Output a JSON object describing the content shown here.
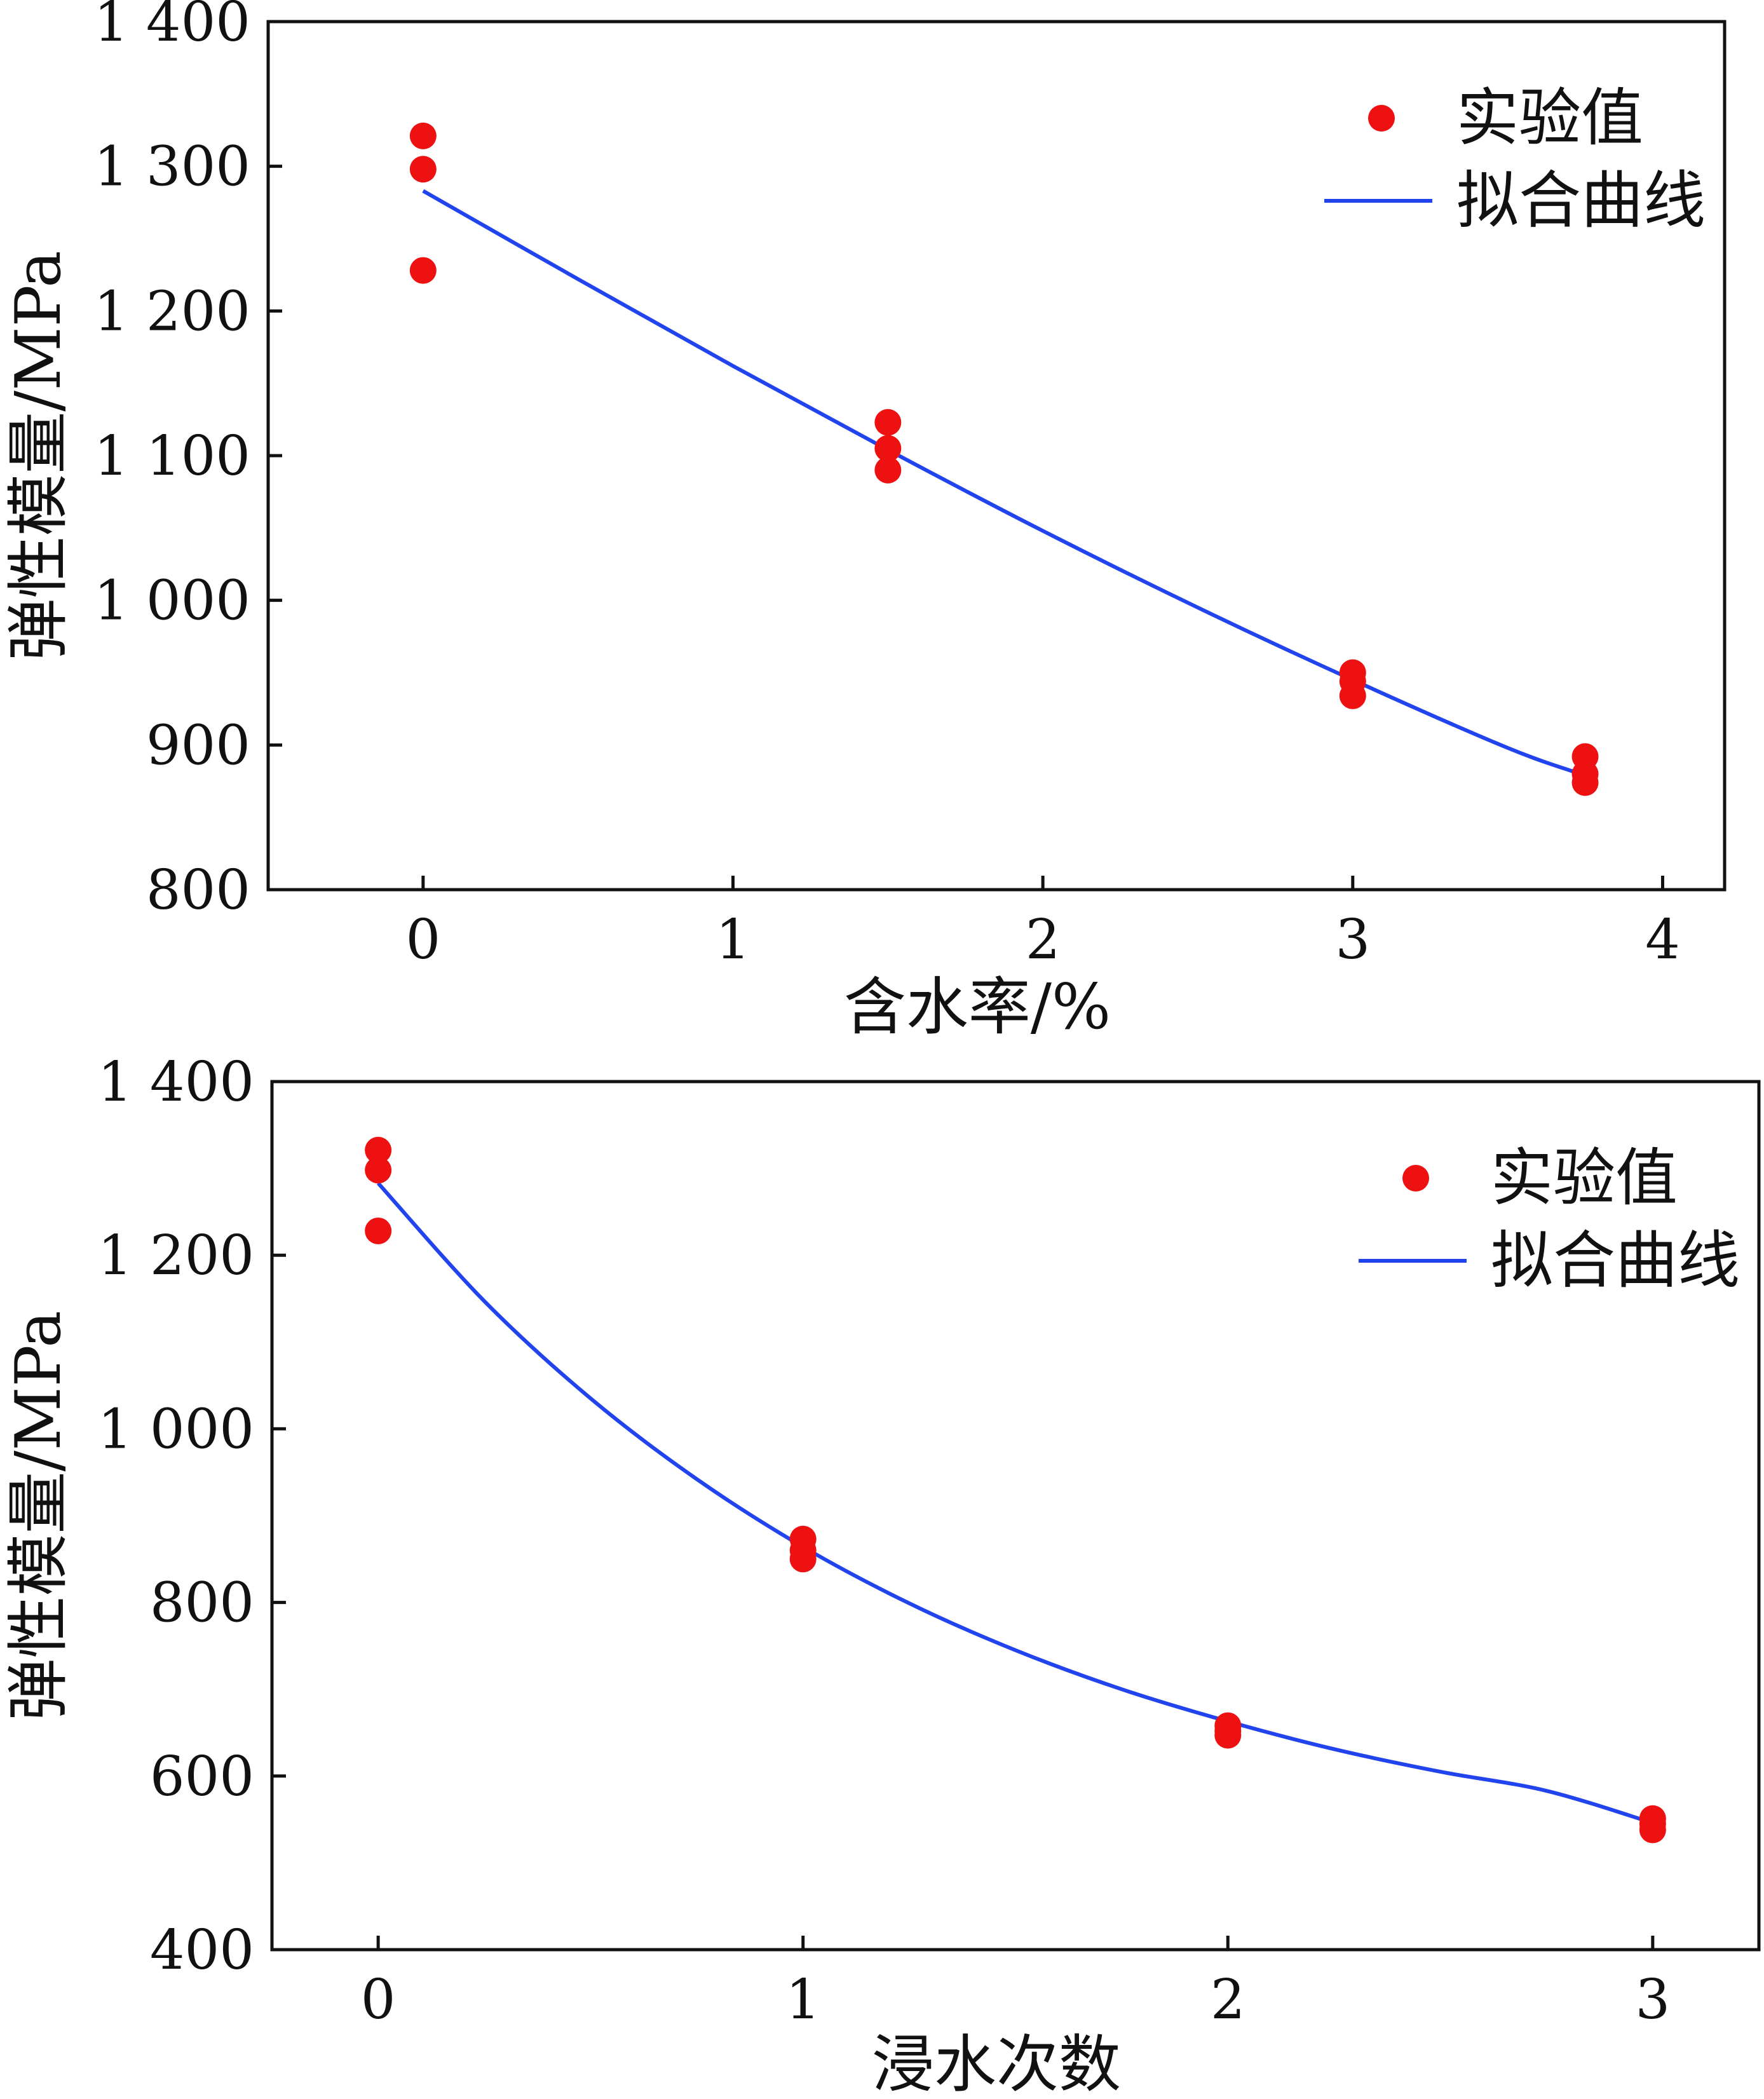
{
  "chart_data": [
    {
      "type": "scatter",
      "xlabel": "含水率/%",
      "ylabel": "弹性模量/MPa",
      "xlim": [
        -0.5,
        4.2
      ],
      "ylim": [
        800,
        1400
      ],
      "xticks": [
        0,
        1,
        2,
        3,
        4
      ],
      "xtick_labels": [
        "0",
        "1",
        "2",
        "3",
        "4"
      ],
      "yticks": [
        800,
        900,
        1000,
        1100,
        1200,
        1300,
        1400
      ],
      "ytick_labels": [
        "800",
        "900",
        "1 000",
        "1 100",
        "1 200",
        "1 300",
        "1 400"
      ],
      "grid": false,
      "legend": {
        "placement": "top-right",
        "points_label": "实验值",
        "line_label": "拟合曲线"
      },
      "points": {
        "color": "#ee1111",
        "x": [
          0,
          0,
          0,
          1.5,
          1.5,
          1.5,
          3,
          3,
          3,
          3.75,
          3.75,
          3.75
        ],
        "y": [
          1321,
          1298,
          1228,
          1123,
          1105,
          1090,
          950,
          944,
          934,
          892,
          880,
          874
        ]
      },
      "fit": {
        "color": "#2244ee",
        "x": [
          0,
          0.5,
          1,
          1.5,
          2,
          2.5,
          3,
          3.5,
          3.75
        ],
        "y": [
          1283,
          1222,
          1162,
          1104,
          1048,
          995,
          945,
          898,
          879
        ]
      }
    },
    {
      "type": "scatter",
      "xlabel": "浸水次数",
      "ylabel": "弹性模量/MPa",
      "xlim": [
        -0.25,
        3.25
      ],
      "ylim": [
        400,
        1400
      ],
      "xticks": [
        0,
        1,
        2,
        3
      ],
      "xtick_labels": [
        "0",
        "1",
        "2",
        "3"
      ],
      "yticks": [
        400,
        600,
        800,
        1000,
        1200,
        1400
      ],
      "ytick_labels": [
        "400",
        "600",
        "800",
        "1 000",
        "1 200",
        "1 400"
      ],
      "grid": false,
      "legend": {
        "placement": "top-right",
        "points_label": "实验值",
        "line_label": "拟合曲线"
      },
      "points": {
        "color": "#ee1111",
        "x": [
          0,
          0,
          0,
          1,
          1,
          1,
          2,
          2,
          2,
          3,
          3,
          3
        ],
        "y": [
          1321,
          1298,
          1228,
          873,
          860,
          850,
          658,
          652,
          647,
          551,
          545,
          538
        ]
      },
      "fit": {
        "color": "#2244ee",
        "x": [
          0,
          0.25,
          0.5,
          0.75,
          1,
          1.25,
          1.5,
          1.75,
          2,
          2.25,
          2.5,
          2.75,
          3
        ],
        "y": [
          1283,
          1147,
          1035,
          942,
          864,
          799,
          745,
          700,
          663,
          631,
          605,
          583,
          546
        ]
      }
    }
  ]
}
